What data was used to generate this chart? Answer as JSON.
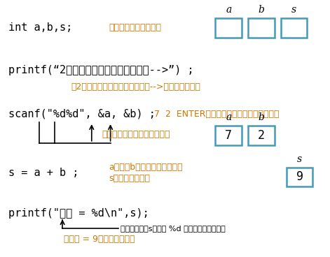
{
  "bg_color": "#ffffff",
  "code_color": "#000000",
  "comment_color": "#cc7700",
  "box_color": "#4499bb",
  "arrow_color": "#000000",
  "line1_code": "int a,b,s;",
  "line1_comment": "メモリーが準備される",
  "line2_code": "printf(\"’‘2つの整数を入力してください-->\"’) ;",
  "line2_comment": "「2つの整数を入力してください-->」と表示される",
  "line3_code": "scanf(\"%d%d\", &a, &b) ;",
  "line3_comment": "7  2  ENTER　とキーボードから入力すると",
  "line3_comment2": "値がメモリーにセットされる",
  "line4_code": "s = a + b ;",
  "line4_comment1": "aの値とbの値を加えた結果が",
  "line4_comment2": "sにセットされる",
  "line5_code": "printf(\"合計 = %d\\n\",s);",
  "line5_comment1": "その時点でのsの値が %d の位置に出力される",
  "line5_comment2": "「合計 = 9」と表示される",
  "boxes_top_labels": [
    "a",
    "b",
    "s"
  ],
  "boxes_mid_labels": [
    "a",
    "b"
  ],
  "boxes_mid_values": [
    "7",
    "2"
  ],
  "box_s_value": "9",
  "label_fontsize": 10,
  "value_fontsize": 12,
  "code_fontsize": 11,
  "comment_fontsize": 9
}
